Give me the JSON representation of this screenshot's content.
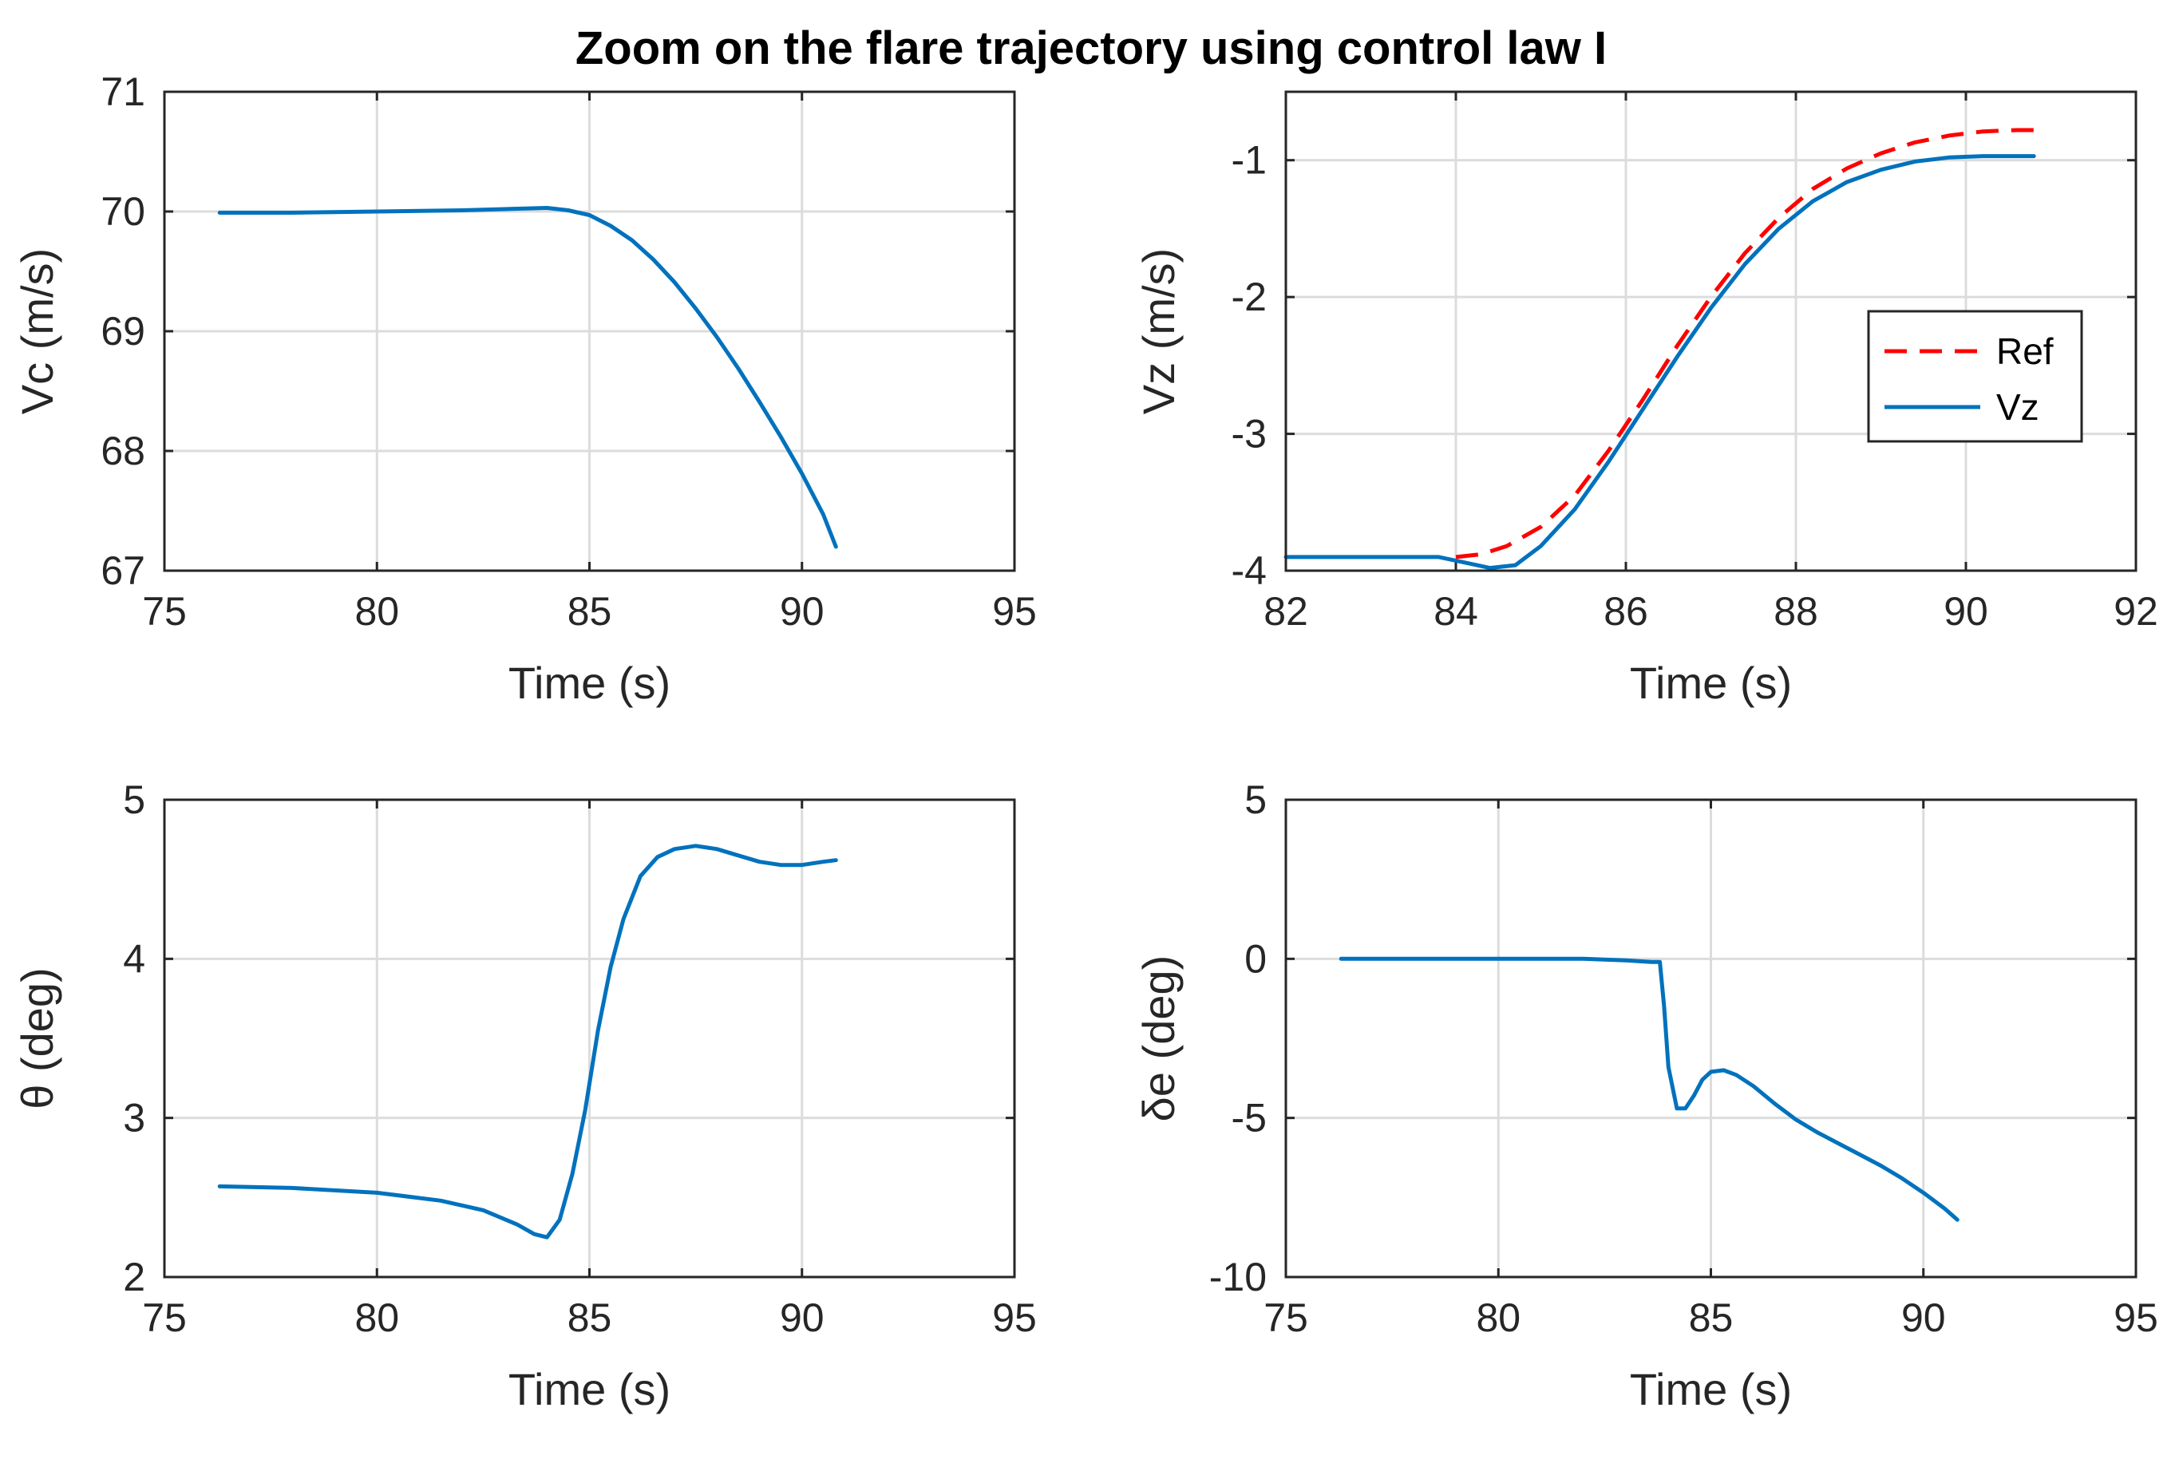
{
  "figure_title": "Zoom on the flare trajectory using control law I",
  "colors": {
    "series": "#0072BD",
    "ref": "#FF0000",
    "axis": "#262626",
    "grid": "#DCDCDC"
  },
  "chart_data": [
    {
      "type": "line",
      "xlabel": "Time (s)",
      "ylabel": "Vc (m/s)",
      "xlim": [
        75,
        95
      ],
      "ylim": [
        67,
        71
      ],
      "xticks": [
        "75",
        "80",
        "85",
        "90",
        "95"
      ],
      "yticks": [
        "67",
        "68",
        "69",
        "70",
        "71"
      ],
      "grid": true,
      "series": [
        {
          "name": "Vc",
          "x": [
            76.3,
            78,
            80,
            82,
            83,
            84,
            84.5,
            85,
            85.5,
            86,
            86.5,
            87,
            87.5,
            88,
            88.5,
            89,
            89.5,
            90,
            90.5,
            90.8
          ],
          "y": [
            69.99,
            69.99,
            70.0,
            70.01,
            70.02,
            70.03,
            70.01,
            69.97,
            69.88,
            69.76,
            69.6,
            69.41,
            69.19,
            68.95,
            68.69,
            68.41,
            68.12,
            67.81,
            67.47,
            67.2
          ]
        }
      ]
    },
    {
      "type": "line",
      "xlabel": "Time (s)",
      "ylabel": "Vz (m/s)",
      "xlim": [
        82,
        92
      ],
      "ylim": [
        -4,
        -0.5
      ],
      "xticks": [
        "82",
        "84",
        "86",
        "88",
        "90",
        "92"
      ],
      "yticks": [
        "-4",
        "-3",
        "-2",
        "-1"
      ],
      "grid": true,
      "legend": {
        "placement": "right",
        "entries": [
          "Ref",
          "Vz"
        ]
      },
      "series": [
        {
          "name": "Ref",
          "style": "dashed",
          "x": [
            84.0,
            84.3,
            84.6,
            85.0,
            85.4,
            85.8,
            86.2,
            86.6,
            87.0,
            87.4,
            87.8,
            88.2,
            88.6,
            89.0,
            89.4,
            89.8,
            90.2,
            90.6,
            90.8
          ],
          "y": [
            -3.9,
            -3.88,
            -3.82,
            -3.68,
            -3.45,
            -3.12,
            -2.75,
            -2.36,
            -2.0,
            -1.68,
            -1.42,
            -1.21,
            -1.06,
            -0.95,
            -0.87,
            -0.82,
            -0.79,
            -0.78,
            -0.78
          ]
        },
        {
          "name": "Vz",
          "style": "solid",
          "x": [
            82.0,
            83.0,
            83.8,
            84.1,
            84.4,
            84.7,
            85.0,
            85.4,
            85.8,
            86.2,
            86.6,
            87.0,
            87.4,
            87.8,
            88.2,
            88.6,
            89.0,
            89.4,
            89.8,
            90.2,
            90.8
          ],
          "y": [
            -3.9,
            -3.9,
            -3.9,
            -3.94,
            -3.98,
            -3.96,
            -3.82,
            -3.55,
            -3.2,
            -2.82,
            -2.44,
            -2.08,
            -1.76,
            -1.5,
            -1.3,
            -1.16,
            -1.07,
            -1.01,
            -0.98,
            -0.97,
            -0.97
          ]
        }
      ]
    },
    {
      "type": "line",
      "xlabel": "Time (s)",
      "ylabel": "θ (deg)",
      "xlim": [
        75,
        95
      ],
      "ylim": [
        2,
        5
      ],
      "xticks": [
        "75",
        "80",
        "85",
        "90",
        "95"
      ],
      "yticks": [
        "2",
        "3",
        "4",
        "5"
      ],
      "grid": true,
      "series": [
        {
          "name": "theta",
          "x": [
            76.3,
            78,
            80,
            81.5,
            82.5,
            83.3,
            83.7,
            84.0,
            84.3,
            84.6,
            84.9,
            85.2,
            85.5,
            85.8,
            86.2,
            86.6,
            87.0,
            87.5,
            88.0,
            88.5,
            89.0,
            89.5,
            90.0,
            90.5,
            90.8
          ],
          "y": [
            2.57,
            2.56,
            2.53,
            2.48,
            2.42,
            2.33,
            2.27,
            2.25,
            2.36,
            2.65,
            3.05,
            3.55,
            3.95,
            4.25,
            4.52,
            4.64,
            4.69,
            4.71,
            4.69,
            4.65,
            4.61,
            4.59,
            4.59,
            4.61,
            4.62
          ]
        }
      ]
    },
    {
      "type": "line",
      "xlabel": "Time (s)",
      "ylabel": "δe (deg)",
      "xlim": [
        75,
        95
      ],
      "ylim": [
        -10,
        5
      ],
      "xticks": [
        "75",
        "80",
        "85",
        "90",
        "95"
      ],
      "yticks": [
        "-10",
        "-5",
        "0",
        "5"
      ],
      "grid": true,
      "series": [
        {
          "name": "delta_e",
          "x": [
            76.3,
            78,
            80,
            82,
            83,
            83.6,
            83.8,
            83.9,
            84.0,
            84.2,
            84.4,
            84.6,
            84.8,
            85.0,
            85.3,
            85.6,
            86.0,
            86.5,
            87.0,
            87.5,
            88.0,
            88.5,
            89.0,
            89.5,
            90.0,
            90.5,
            90.8
          ],
          "y": [
            0.0,
            0.0,
            0.0,
            0.0,
            -0.05,
            -0.1,
            -0.1,
            -1.5,
            -3.4,
            -4.7,
            -4.7,
            -4.3,
            -3.8,
            -3.55,
            -3.5,
            -3.65,
            -4.0,
            -4.55,
            -5.05,
            -5.45,
            -5.8,
            -6.15,
            -6.5,
            -6.9,
            -7.35,
            -7.85,
            -8.2
          ]
        }
      ]
    }
  ]
}
